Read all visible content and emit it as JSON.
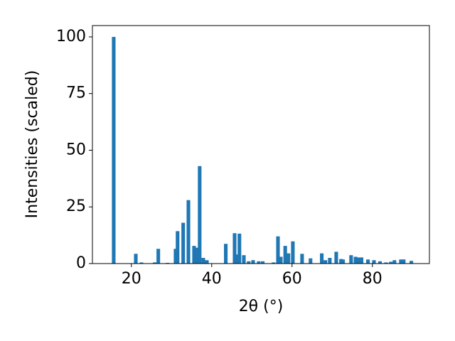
{
  "chart_data": {
    "type": "bar",
    "x_label": "2θ (°)",
    "y_label": "Intensities (scaled)",
    "x": [
      15.6,
      21.1,
      22.5,
      25.8,
      26.7,
      29,
      31,
      31.5,
      32.9,
      34.2,
      35.6,
      36.3,
      37,
      37.9,
      38.8,
      43.5,
      45.7,
      46.4,
      46.9,
      48,
      49.2,
      50.3,
      51.7,
      52.7,
      55.4,
      56.5,
      57.2,
      58.3,
      59.1,
      60.2,
      62.5,
      64.6,
      67.4,
      68.3,
      69.4,
      71,
      72.2,
      72.7,
      74.7,
      75.8,
      76.5,
      77.3,
      78.9,
      80.4,
      81.9,
      83.4,
      84.6,
      85.5,
      87.1,
      87.8,
      89.7
    ],
    "values": [
      100,
      4.3,
      0.5,
      0.5,
      6.5,
      0.3,
      6.5,
      14.3,
      18,
      28,
      7.8,
      7,
      43,
      2.5,
      1.5,
      8.7,
      13.4,
      4,
      13.2,
      3.7,
      1,
      1.5,
      1,
      1,
      0.5,
      12,
      3,
      7.8,
      4.5,
      9.8,
      4.3,
      2.3,
      4.5,
      1.5,
      2.5,
      5.2,
      2,
      1.8,
      3.7,
      3,
      2.7,
      2.7,
      1.8,
      1.5,
      1,
      0.5,
      0.8,
      1.5,
      1.8,
      1.8,
      1.2
    ],
    "color": "#1f77b4",
    "xlim": [
      10.3,
      94.2
    ],
    "ylim": [
      0,
      105
    ],
    "xticks": [
      20,
      40,
      60,
      80
    ],
    "yticks": [
      0,
      25,
      50,
      75,
      100
    ],
    "grid": false
  }
}
